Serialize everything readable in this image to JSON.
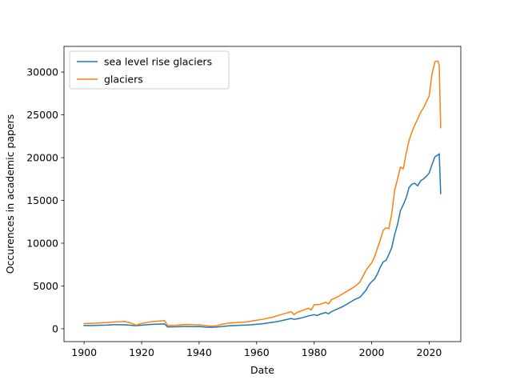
{
  "chart_data": {
    "type": "line",
    "title": "",
    "xlabel": "Date",
    "ylabel": "Occurences in academic papers",
    "xlim": [
      1893,
      2031
    ],
    "ylim": [
      -1500,
      33000
    ],
    "x_ticks": [
      1900,
      1920,
      1940,
      1960,
      1980,
      2000,
      2020
    ],
    "y_ticks": [
      0,
      5000,
      10000,
      15000,
      20000,
      25000,
      30000
    ],
    "legend_position": "top-left",
    "grid": false,
    "series": [
      {
        "name": "sea level rise glaciers",
        "color": "#1f77b4",
        "points": [
          [
            1900,
            380
          ],
          [
            1902,
            370
          ],
          [
            1904,
            390
          ],
          [
            1906,
            420
          ],
          [
            1908,
            430
          ],
          [
            1910,
            470
          ],
          [
            1912,
            480
          ],
          [
            1914,
            460
          ],
          [
            1916,
            420
          ],
          [
            1918,
            360
          ],
          [
            1920,
            420
          ],
          [
            1922,
            480
          ],
          [
            1924,
            520
          ],
          [
            1926,
            540
          ],
          [
            1928,
            560
          ],
          [
            1929,
            220
          ],
          [
            1932,
            230
          ],
          [
            1934,
            260
          ],
          [
            1936,
            260
          ],
          [
            1938,
            250
          ],
          [
            1940,
            260
          ],
          [
            1942,
            200
          ],
          [
            1944,
            170
          ],
          [
            1946,
            200
          ],
          [
            1948,
            260
          ],
          [
            1950,
            330
          ],
          [
            1952,
            370
          ],
          [
            1954,
            400
          ],
          [
            1956,
            430
          ],
          [
            1958,
            460
          ],
          [
            1960,
            520
          ],
          [
            1962,
            580
          ],
          [
            1964,
            690
          ],
          [
            1966,
            780
          ],
          [
            1968,
            900
          ],
          [
            1970,
            1050
          ],
          [
            1972,
            1200
          ],
          [
            1973,
            1100
          ],
          [
            1974,
            1150
          ],
          [
            1976,
            1300
          ],
          [
            1978,
            1500
          ],
          [
            1980,
            1650
          ],
          [
            1981,
            1550
          ],
          [
            1982,
            1700
          ],
          [
            1984,
            1900
          ],
          [
            1985,
            1750
          ],
          [
            1986,
            2000
          ],
          [
            1988,
            2300
          ],
          [
            1990,
            2600
          ],
          [
            1992,
            3000
          ],
          [
            1993,
            3200
          ],
          [
            1994,
            3400
          ],
          [
            1996,
            3700
          ],
          [
            1998,
            4500
          ],
          [
            1999,
            5100
          ],
          [
            2000,
            5500
          ],
          [
            2001,
            5800
          ],
          [
            2002,
            6400
          ],
          [
            2003,
            7200
          ],
          [
            2004,
            7800
          ],
          [
            2005,
            8000
          ],
          [
            2006,
            8700
          ],
          [
            2007,
            9500
          ],
          [
            2008,
            11000
          ],
          [
            2009,
            12200
          ],
          [
            2010,
            13800
          ],
          [
            2011,
            14500
          ],
          [
            2012,
            15300
          ],
          [
            2013,
            16500
          ],
          [
            2014,
            16900
          ],
          [
            2015,
            17000
          ],
          [
            2016,
            16700
          ],
          [
            2017,
            17300
          ],
          [
            2018,
            17500
          ],
          [
            2019,
            17800
          ],
          [
            2020,
            18200
          ],
          [
            2021,
            19200
          ],
          [
            2022,
            20100
          ],
          [
            2023,
            20300
          ],
          [
            2023.5,
            20450
          ],
          [
            2024,
            15800
          ]
        ]
      },
      {
        "name": "glaciers",
        "color": "#ff7f0e",
        "points": [
          [
            1900,
            620
          ],
          [
            1902,
            630
          ],
          [
            1904,
            650
          ],
          [
            1906,
            700
          ],
          [
            1908,
            720
          ],
          [
            1910,
            790
          ],
          [
            1912,
            810
          ],
          [
            1914,
            860
          ],
          [
            1916,
            700
          ],
          [
            1918,
            420
          ],
          [
            1920,
            620
          ],
          [
            1922,
            750
          ],
          [
            1924,
            850
          ],
          [
            1926,
            900
          ],
          [
            1928,
            950
          ],
          [
            1929,
            380
          ],
          [
            1932,
            400
          ],
          [
            1934,
            480
          ],
          [
            1936,
            500
          ],
          [
            1938,
            470
          ],
          [
            1940,
            460
          ],
          [
            1942,
            380
          ],
          [
            1944,
            300
          ],
          [
            1946,
            350
          ],
          [
            1948,
            520
          ],
          [
            1950,
            650
          ],
          [
            1952,
            700
          ],
          [
            1954,
            750
          ],
          [
            1956,
            780
          ],
          [
            1958,
            880
          ],
          [
            1960,
            1000
          ],
          [
            1962,
            1100
          ],
          [
            1964,
            1250
          ],
          [
            1966,
            1400
          ],
          [
            1968,
            1600
          ],
          [
            1970,
            1800
          ],
          [
            1972,
            2000
          ],
          [
            1973,
            1650
          ],
          [
            1974,
            1900
          ],
          [
            1976,
            2150
          ],
          [
            1978,
            2400
          ],
          [
            1979,
            2200
          ],
          [
            1980,
            2800
          ],
          [
            1982,
            2850
          ],
          [
            1984,
            3100
          ],
          [
            1985,
            2900
          ],
          [
            1986,
            3400
          ],
          [
            1988,
            3700
          ],
          [
            1990,
            4100
          ],
          [
            1992,
            4500
          ],
          [
            1994,
            4900
          ],
          [
            1996,
            5500
          ],
          [
            1998,
            6800
          ],
          [
            1999,
            7300
          ],
          [
            2000,
            7700
          ],
          [
            2001,
            8400
          ],
          [
            2002,
            9400
          ],
          [
            2003,
            10400
          ],
          [
            2004,
            11500
          ],
          [
            2005,
            11800
          ],
          [
            2006,
            11700
          ],
          [
            2007,
            13500
          ],
          [
            2008,
            16200
          ],
          [
            2009,
            17500
          ],
          [
            2010,
            18900
          ],
          [
            2011,
            18700
          ],
          [
            2012,
            20500
          ],
          [
            2013,
            22000
          ],
          [
            2014,
            23000
          ],
          [
            2015,
            23800
          ],
          [
            2016,
            24500
          ],
          [
            2017,
            25300
          ],
          [
            2018,
            25800
          ],
          [
            2019,
            26500
          ],
          [
            2020,
            27200
          ],
          [
            2021,
            29800
          ],
          [
            2022,
            31200
          ],
          [
            2023,
            31300
          ],
          [
            2023.5,
            30800
          ],
          [
            2024,
            23500
          ]
        ]
      }
    ]
  }
}
